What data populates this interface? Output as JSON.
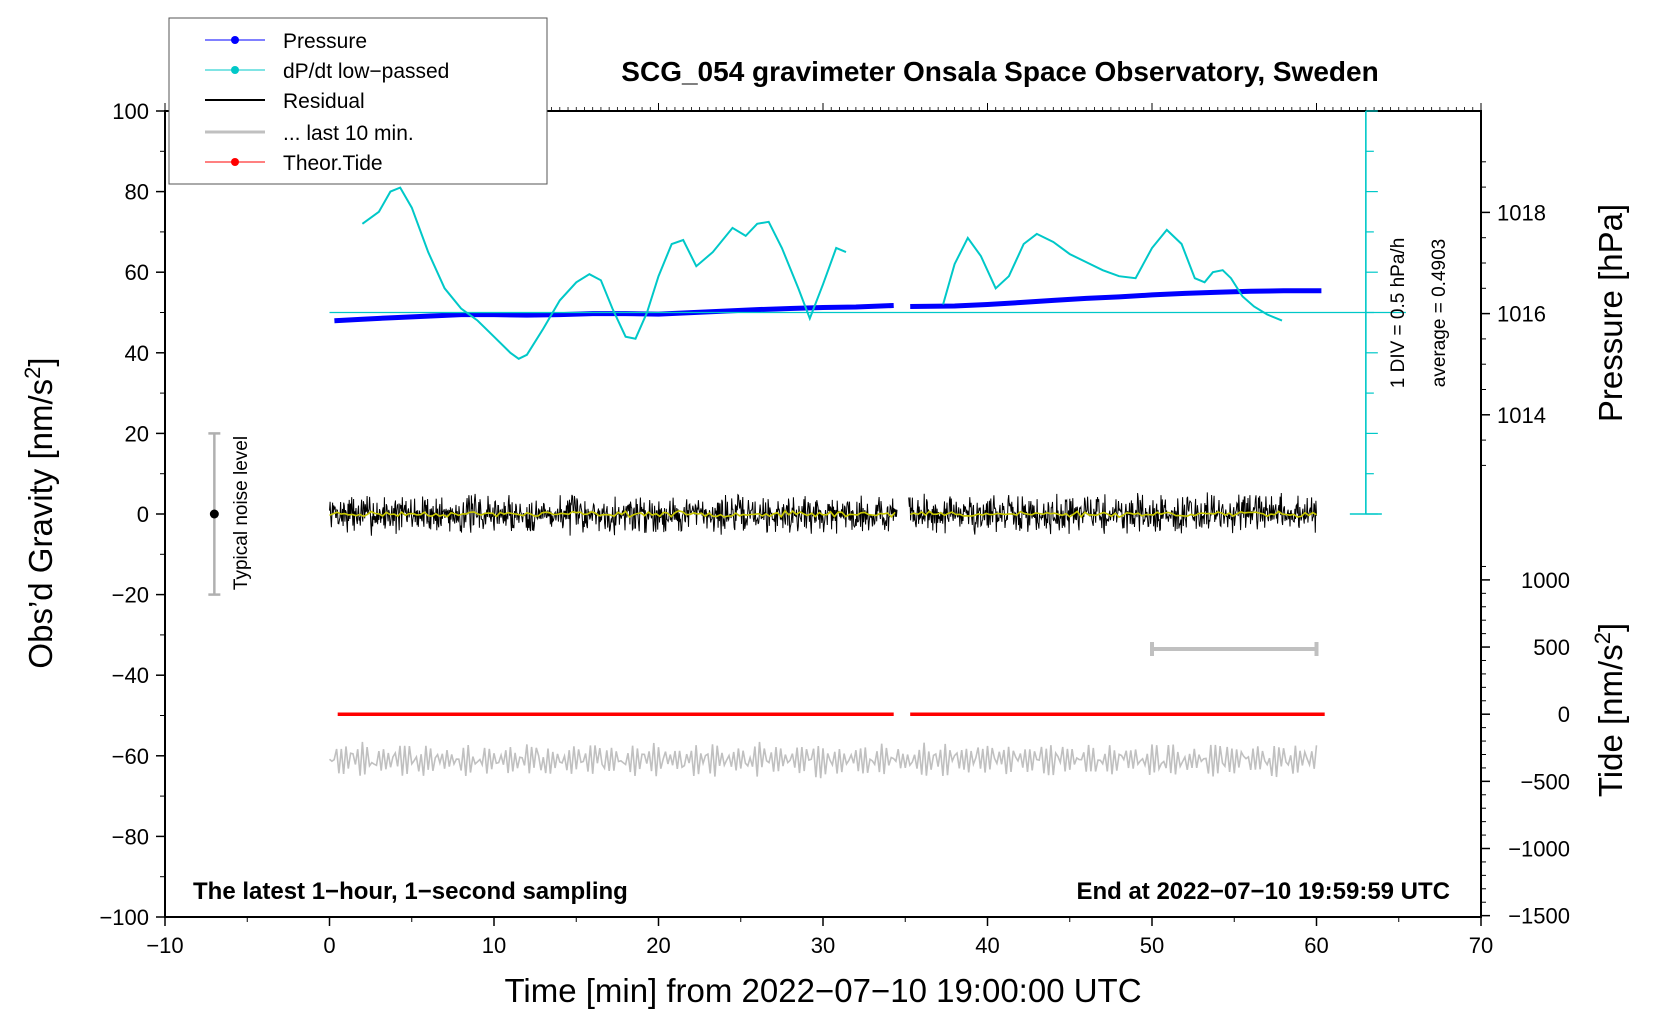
{
  "chart_data": {
    "type": "line",
    "title": "SCG_054 gravimeter Onsala Space Observatory, Sweden",
    "xlabel": "Time [min] from 2022−07−10 19:00:00 UTC",
    "ylabel": "Obs’d Gravity [nm/s²]",
    "ylabel_main": "Obs’d Gravity [nm/s",
    "ylabel_sup": "2",
    "ylabel_close": "]",
    "y2label": "Pressure [hPa]",
    "y3label": "Tide [nm/s²]",
    "y3label_main": "Tide [nm/s",
    "y3label_sup": "2",
    "y3label_close": "]",
    "xlim": [
      -10,
      70
    ],
    "ylim": [
      -100,
      100
    ],
    "pressure_lim": [
      1012,
      1020
    ],
    "tide_lim": [
      -1500,
      1500
    ],
    "xticks": [
      -10,
      0,
      10,
      20,
      30,
      40,
      50,
      60,
      70
    ],
    "xtick_labels": [
      "−10",
      "0",
      "10",
      "20",
      "30",
      "40",
      "50",
      "60",
      "70"
    ],
    "yticks": [
      -100,
      -80,
      -60,
      -40,
      -20,
      0,
      20,
      40,
      60,
      80,
      100
    ],
    "ytick_labels": [
      "−100",
      "−80",
      "−60",
      "−40",
      "−20",
      "0",
      "20",
      "40",
      "60",
      "80",
      "100"
    ],
    "pressure_ticks": [
      1014,
      1016,
      1018
    ],
    "pressure_tick_labels": [
      "1014",
      "1016",
      "1018"
    ],
    "tide_ticks": [
      -1500,
      -1000,
      -500,
      0,
      500,
      1000
    ],
    "tide_tick_labels": [
      "−1500",
      "−1000",
      "−500",
      "0",
      "500",
      "1000"
    ],
    "bottom_left_text": "The latest 1−hour, 1−second sampling",
    "bottom_right_text": "End at 2022−07−10 19:59:59 UTC",
    "noise_bar": {
      "label": "Typical noise level",
      "x": -7,
      "center": 0,
      "half_range": 20
    },
    "dpdt_scale": {
      "line1": "1 DIV = 0.5 hPa/h",
      "line2": "average = 0.4903",
      "x": 63,
      "baseline_y": 50
    },
    "last10_marker": {
      "x_start": 50,
      "x_end": 60,
      "y": -33.5
    },
    "legend": [
      {
        "label": "Pressure",
        "color": "#0000ff",
        "marker": true
      },
      {
        "label": "dP/dt low−passed",
        "color": "#00c8c8",
        "marker": true
      },
      {
        "label": "Residual",
        "color": "#000000",
        "marker": false
      },
      {
        "label": "... last 10 min.",
        "color": "#c0c0c0",
        "marker": false
      },
      {
        "label": "Theor.Tide",
        "color": "#ff0000",
        "marker": true
      }
    ],
    "series": [
      {
        "name": "Pressure",
        "color": "#0000ff",
        "axis": "pressure",
        "x": [
          0.3,
          2,
          4,
          6,
          8,
          10,
          12,
          14,
          16,
          18,
          20,
          22,
          24,
          26,
          28,
          30,
          32,
          34.3,
          null,
          35.3,
          38,
          40,
          42,
          44,
          46,
          48,
          50,
          52,
          54,
          56,
          58,
          60.3
        ],
        "y": [
          1015.86,
          1015.89,
          1015.92,
          1015.95,
          1015.98,
          1015.98,
          1015.97,
          1015.98,
          1016.0,
          1016.0,
          1015.99,
          1016.02,
          1016.05,
          1016.08,
          1016.1,
          1016.12,
          1016.13,
          1016.16,
          null,
          1016.14,
          1016.15,
          1016.18,
          1016.22,
          1016.26,
          1016.3,
          1016.33,
          1016.37,
          1016.4,
          1016.42,
          1016.44,
          1016.45,
          1016.45
        ]
      },
      {
        "name": "dP/dt low−passed",
        "color": "#00c8c8",
        "axis": "gravity",
        "x": [
          2,
          3,
          3.7,
          4.3,
          5,
          6,
          7,
          8,
          9,
          10,
          11,
          11.5,
          12,
          13,
          14,
          15,
          15.8,
          16.5,
          17.2,
          18,
          18.6,
          19.3,
          20,
          20.8,
          21.5,
          22.3,
          23.3,
          24.5,
          25.3,
          26,
          26.7,
          27.5,
          28.5,
          29.2,
          30,
          30.8,
          31.4,
          null,
          37.3,
          38,
          38.8,
          39.6,
          40.5,
          41.3,
          42.2,
          43,
          44,
          45,
          46,
          47,
          48,
          49,
          50,
          50.9,
          51.8,
          52.6,
          53.2,
          53.7,
          54.3,
          54.8,
          55.5,
          56.2,
          57,
          57.9
        ],
        "y": [
          72,
          75,
          80,
          81,
          76,
          65,
          56,
          51,
          48,
          44,
          40,
          38.5,
          39.5,
          46,
          53,
          57.5,
          59.5,
          58,
          51,
          44,
          43.5,
          50,
          59,
          67,
          68,
          61.5,
          65,
          71,
          69,
          72,
          72.5,
          66,
          56,
          48.5,
          57,
          66,
          65,
          null,
          52,
          62,
          68.5,
          64,
          56,
          59,
          67,
          69.5,
          67.5,
          64.5,
          62.5,
          60.5,
          59,
          58.5,
          66,
          70.5,
          67,
          58.5,
          57.5,
          60,
          60.5,
          58.5,
          54,
          51.5,
          49.5,
          48
        ]
      },
      {
        "name": "Residual",
        "color": "#000000",
        "axis": "gravity",
        "x_start": 0,
        "x_end": 60,
        "gap": [
          34.5,
          35.2
        ],
        "amplitude": 4,
        "mean": 0
      },
      {
        "name": "Residual smoothed",
        "color": "#c8c800",
        "axis": "gravity",
        "x_start": 0,
        "x_end": 60,
        "gap": [
          34.5,
          35.2
        ],
        "amplitude": 0.6,
        "mean": 0
      },
      {
        "name": "... last 10 min.",
        "color": "#c0c0c0",
        "axis": "gravity",
        "x_start": 0,
        "x_end": 60,
        "mean": -61,
        "amplitude": 4
      },
      {
        "name": "Theor.Tide",
        "color": "#ff0000",
        "axis": "tide",
        "x": [
          0.5,
          34.3,
          null,
          35.3,
          60.5
        ],
        "y": [
          0,
          0,
          null,
          0,
          0
        ]
      }
    ]
  }
}
